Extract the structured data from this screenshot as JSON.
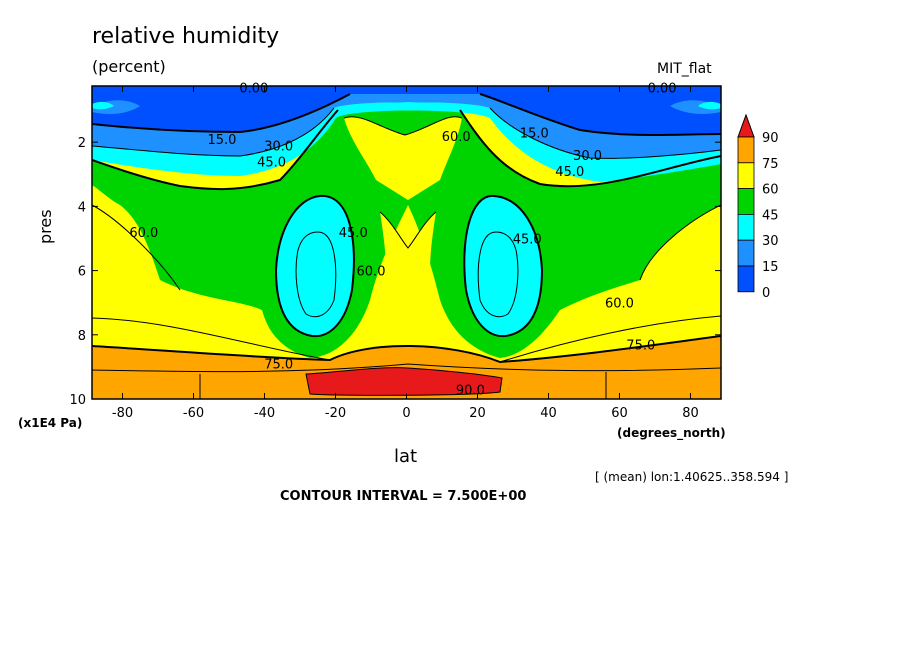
{
  "chart_data": {
    "type": "heatmap",
    "title": "relative humidity",
    "subtitle": "(percent)",
    "model": "MIT_flat",
    "xlabel": "lat",
    "xunits": "(degrees_north)",
    "ylabel": "pres",
    "yunits": "(x1E4 Pa)",
    "averaging_note": "[ (mean) lon:1.40625..358.594 ]",
    "contour_interval": "CONTOUR INTERVAL = 7.500E+00",
    "x_ticks": [
      -80,
      -60,
      -40,
      -20,
      0,
      20,
      40,
      60,
      80
    ],
    "x_tick_labels": [
      "-80",
      "-60",
      "-40",
      "-20",
      "0",
      "20",
      "40",
      "60",
      "80"
    ],
    "y_ticks": [
      2,
      4,
      6,
      8,
      10
    ],
    "y_tick_labels": [
      "2",
      "4",
      "6",
      "8",
      "10"
    ],
    "xlim": [
      -88.6,
      88.6
    ],
    "ylim": [
      10,
      0.25
    ],
    "legend": {
      "labels": [
        "90",
        "75",
        "60",
        "45",
        "30",
        "15",
        "0"
      ],
      "colors": [
        "#e8191b",
        "#ffa500",
        "#ffff00",
        "#00d400",
        "#00ffff",
        "#1e90ff",
        "#0050ff"
      ]
    },
    "contour_labels": [
      {
        "text": "0.00",
        "lat": -43,
        "p": 0.3
      },
      {
        "text": "0.00",
        "lat": 72,
        "p": 0.3
      },
      {
        "text": "15.0",
        "lat": -52,
        "p": 1.9
      },
      {
        "text": "30.0",
        "lat": -36,
        "p": 2.1
      },
      {
        "text": "45.0",
        "lat": -38,
        "p": 2.6
      },
      {
        "text": "15.0",
        "lat": 36,
        "p": 1.7
      },
      {
        "text": "30.0",
        "lat": 51,
        "p": 2.4
      },
      {
        "text": "45.0",
        "lat": 46,
        "p": 2.9
      },
      {
        "text": "60.0",
        "lat": 14,
        "p": 1.8
      },
      {
        "text": "45.0",
        "lat": -15,
        "p": 4.8
      },
      {
        "text": "60.0",
        "lat": -10,
        "p": 6.0
      },
      {
        "text": "45.0",
        "lat": 34,
        "p": 5.0
      },
      {
        "text": "60.0",
        "lat": -74,
        "p": 4.8
      },
      {
        "text": "60.0",
        "lat": 60,
        "p": 7.0
      },
      {
        "text": "75.0",
        "lat": 66,
        "p": 8.3
      },
      {
        "text": "75.0",
        "lat": -36,
        "p": 8.9
      },
      {
        "text": "90.0",
        "lat": 18,
        "p": 9.7
      }
    ]
  }
}
